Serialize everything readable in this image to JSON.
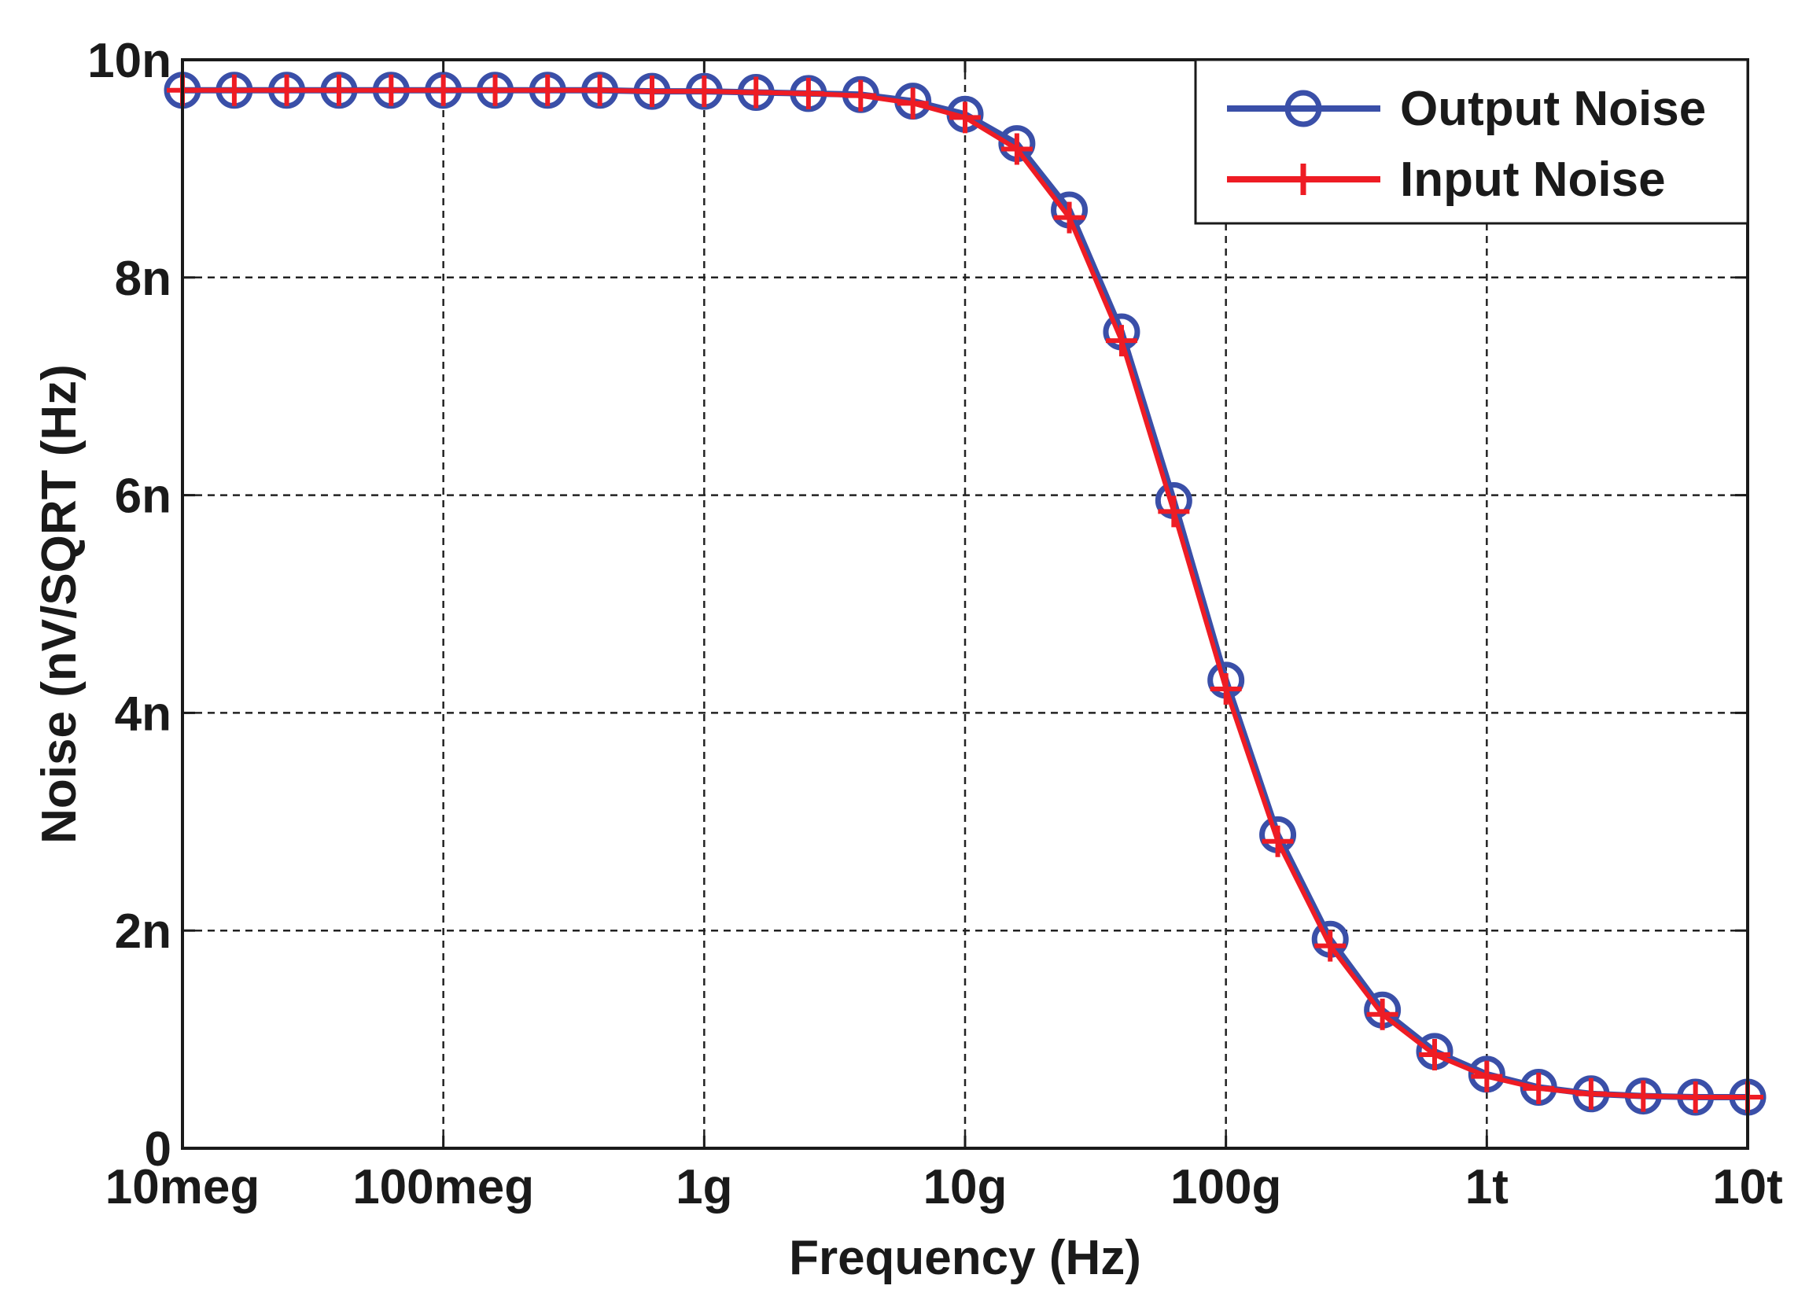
{
  "chart_data": {
    "type": "line",
    "title": "",
    "xlabel": "Frequency (Hz)",
    "ylabel": "Noise (nV/SQRT (Hz)",
    "xscale": "log",
    "xlim": [
      10000000,
      10000000000000
    ],
    "ylim": [
      0,
      10
    ],
    "grid": true,
    "legend_position": "top-right",
    "x_ticks": [
      {
        "value": 10000000,
        "label": "10meg"
      },
      {
        "value": 100000000,
        "label": "100meg"
      },
      {
        "value": 1000000000,
        "label": "1g"
      },
      {
        "value": 10000000000,
        "label": "10g"
      },
      {
        "value": 100000000000,
        "label": "100g"
      },
      {
        "value": 1000000000000,
        "label": "1t"
      },
      {
        "value": 10000000000000,
        "label": "10t"
      }
    ],
    "y_ticks": [
      {
        "value": 0,
        "label": "0"
      },
      {
        "value": 2,
        "label": "2n"
      },
      {
        "value": 4,
        "label": "4n"
      },
      {
        "value": 6,
        "label": "6n"
      },
      {
        "value": 8,
        "label": "8n"
      },
      {
        "value": 10,
        "label": "10n"
      }
    ],
    "x": [
      10000000,
      15800000,
      25100000,
      39800000,
      63100000,
      100000000,
      158000000,
      251000000,
      398000000,
      631000000,
      1000000000,
      1580000000,
      2510000000,
      3980000000,
      6310000000,
      10000000000,
      15800000000,
      25100000000,
      39800000000,
      63100000000,
      100000000000,
      158000000000,
      251000000000,
      398000000000,
      631000000000,
      1000000000000,
      1580000000000,
      2510000000000,
      3980000000000,
      6310000000000,
      10000000000000
    ],
    "series": [
      {
        "name": "Output Noise",
        "color": "#3a4fa8",
        "marker": "circle",
        "values": [
          9.72,
          9.72,
          9.72,
          9.72,
          9.72,
          9.72,
          9.72,
          9.72,
          9.72,
          9.71,
          9.71,
          9.7,
          9.69,
          9.68,
          9.62,
          9.5,
          9.23,
          8.62,
          7.5,
          5.95,
          4.3,
          2.88,
          1.92,
          1.27,
          0.89,
          0.68,
          0.56,
          0.5,
          0.48,
          0.47,
          0.47
        ]
      },
      {
        "name": "Input Noise",
        "color": "#ee1c24",
        "marker": "plus",
        "values": [
          9.72,
          9.72,
          9.72,
          9.72,
          9.72,
          9.72,
          9.72,
          9.72,
          9.72,
          9.71,
          9.71,
          9.7,
          9.69,
          9.67,
          9.6,
          9.47,
          9.18,
          8.55,
          7.42,
          5.85,
          4.22,
          2.82,
          1.86,
          1.23,
          0.86,
          0.66,
          0.55,
          0.5,
          0.48,
          0.47,
          0.47
        ]
      }
    ]
  }
}
